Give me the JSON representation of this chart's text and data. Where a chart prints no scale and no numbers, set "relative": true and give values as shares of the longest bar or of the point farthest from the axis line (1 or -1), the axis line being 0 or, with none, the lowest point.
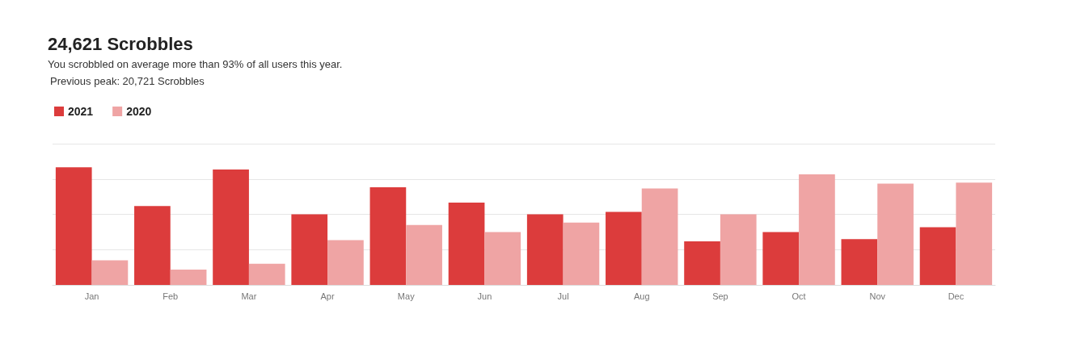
{
  "chart_data": {
    "type": "bar",
    "title": "24,621 Scrobbles",
    "subtitle": "You scrobbled on average more than 93% of all users this year.",
    "annotations": [
      "Previous peak: 20,721 Scrobbles"
    ],
    "relative": true,
    "grid": "y",
    "legend": "top left",
    "categories": [
      "Jan",
      "Feb",
      "Mar",
      "Apr",
      "May",
      "Jun",
      "Jul",
      "Aug",
      "Sep",
      "Oct",
      "Nov",
      "Dec"
    ],
    "series": [
      {
        "name": "2021",
        "color": "#dc3c3c",
        "values": [
          1,
          0.67,
          0.98,
          0.6,
          0.83,
          0.7,
          0.6,
          0.62,
          0.37,
          0.45,
          0.39,
          0.49
        ]
      },
      {
        "name": "2020",
        "color": "#efa4a4",
        "values": [
          0.21,
          0.13,
          0.18,
          0.38,
          0.51,
          0.45,
          0.53,
          0.82,
          0.6,
          0.94,
          0.86,
          0.87
        ]
      }
    ]
  }
}
